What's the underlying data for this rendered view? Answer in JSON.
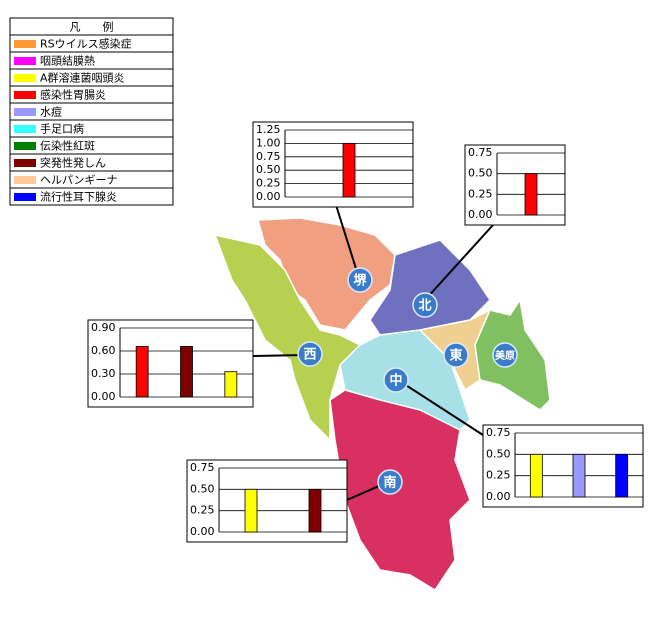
{
  "legend": {
    "title": "凡　　例",
    "items": [
      {
        "label": "RSウイルス感染症",
        "color": "#ff9933"
      },
      {
        "label": "咽頭結膜熱",
        "color": "#ff00ff"
      },
      {
        "label": "A群溶連菌咽頭炎",
        "color": "#ffff00"
      },
      {
        "label": "感染性胃腸炎",
        "color": "#ff0000"
      },
      {
        "label": "水痘",
        "color": "#9999ff"
      },
      {
        "label": "手足口病",
        "color": "#33ffff"
      },
      {
        "label": "伝染性紅斑",
        "color": "#008000"
      },
      {
        "label": "突発性発しん",
        "color": "#800000"
      },
      {
        "label": "ヘルパンギーナ",
        "color": "#ffcc99"
      },
      {
        "label": "流行性耳下腺炎",
        "color": "#0000ff"
      }
    ]
  },
  "regions": [
    {
      "label": "堺"
    },
    {
      "label": "北"
    },
    {
      "label": "西"
    },
    {
      "label": "中"
    },
    {
      "label": "東"
    },
    {
      "label": "美原"
    },
    {
      "label": "南"
    }
  ],
  "charts": [
    {
      "type": "bar",
      "ylim": [
        0,
        1.25
      ],
      "yticks": [
        {
          "value": 0,
          "label": "0.00"
        },
        0.25,
        {
          "value": 0.5,
          "label": "0.50"
        },
        0.75,
        {
          "value": 1,
          "label": "1.00"
        },
        1.25
      ],
      "bars": [
        {
          "color": "#ff0000",
          "value": 1
        }
      ]
    },
    {
      "type": "bar",
      "ylim": [
        0,
        0.75
      ],
      "yticks": [
        {
          "value": 0,
          "label": "0.00"
        },
        0.25,
        {
          "value": 0.5,
          "label": "0.50"
        },
        0.75
      ],
      "bars": [
        {
          "color": "#ff0000",
          "value": 0.5
        }
      ]
    },
    {
      "type": "bar",
      "ylim": [
        0,
        0.9
      ],
      "yticks": [
        {
          "value": 0,
          "label": "0.00"
        },
        {
          "value": 0.3,
          "label": "0.30"
        },
        {
          "value": 0.6,
          "label": "0.60"
        },
        {
          "value": 0.9,
          "label": "0.90"
        }
      ],
      "bars": [
        {
          "color": "#ff0000",
          "value": 0.66
        },
        {
          "color": "#800000",
          "value": 0.66
        },
        {
          "color": "#ffff00",
          "value": 0.33
        }
      ]
    },
    {
      "type": "bar",
      "ylim": [
        0,
        0.75
      ],
      "yticks": [
        {
          "value": 0,
          "label": "0.00"
        },
        0.25,
        {
          "value": 0.5,
          "label": "0.50"
        },
        0.75
      ],
      "bars": [
        {
          "color": "#ffff00",
          "value": 0.5
        },
        {
          "color": "#9999ff",
          "value": 0.5
        },
        {
          "color": "#0000ff",
          "value": 0.5
        }
      ]
    },
    {
      "type": "bar",
      "ylim": [
        0,
        0.75
      ],
      "yticks": [
        {
          "value": 0,
          "label": "0.00"
        },
        0.25,
        {
          "value": 0.5,
          "label": "0.50"
        },
        0.75
      ],
      "bars": [
        {
          "color": "#ffff00",
          "value": 0.5
        },
        {
          "color": "#800000",
          "value": 0.5
        }
      ]
    }
  ]
}
